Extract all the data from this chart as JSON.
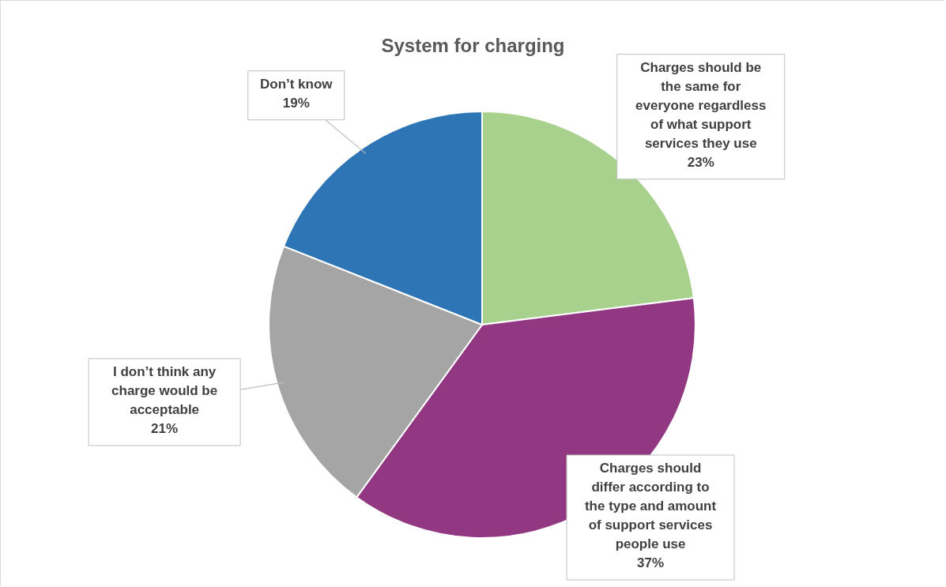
{
  "chart_data": {
    "type": "pie",
    "title": "System for charging",
    "categories": [
      "Charges should be the same for everyone regardless of what support services they use",
      "Charges should differ according to the type and amount of support services people use",
      "I don’t think any charge would be acceptable",
      "Don’t know"
    ],
    "values": [
      23,
      37,
      21,
      19
    ],
    "value_labels": [
      "23%",
      "37%",
      "21%",
      "19%"
    ],
    "colors": [
      "#a9d18e",
      "#923883",
      "#a5a5a5",
      "#2e75b6"
    ],
    "legend": false
  }
}
